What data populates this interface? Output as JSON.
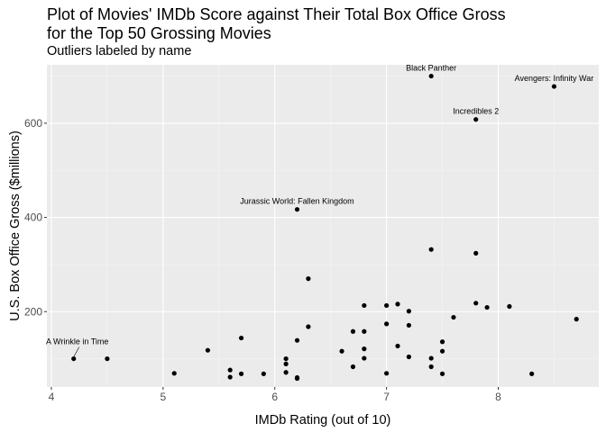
{
  "chart_data": {
    "type": "scatter",
    "title": "Plot of Movies' IMDb Score against Their Total Box Office Gross\nfor the Top 50 Grossing Movies",
    "subtitle": "Outliers labeled by name",
    "xlabel": "IMDb Rating (out of 10)",
    "ylabel": "U.S. Box Office Gross ($millions)",
    "xlim": [
      3.96,
      8.9
    ],
    "ylim": [
      40,
      724
    ],
    "xticks": [
      4,
      5,
      6,
      7,
      8
    ],
    "yticks": [
      200,
      400,
      600
    ],
    "grid": true,
    "points": [
      {
        "x": 4.2,
        "y": 100
      },
      {
        "x": 4.5,
        "y": 100
      },
      {
        "x": 5.1,
        "y": 69
      },
      {
        "x": 5.4,
        "y": 118
      },
      {
        "x": 5.6,
        "y": 76
      },
      {
        "x": 5.6,
        "y": 61
      },
      {
        "x": 5.7,
        "y": 144
      },
      {
        "x": 5.7,
        "y": 68
      },
      {
        "x": 5.9,
        "y": 68
      },
      {
        "x": 6.1,
        "y": 100
      },
      {
        "x": 6.1,
        "y": 89
      },
      {
        "x": 6.1,
        "y": 71
      },
      {
        "x": 6.2,
        "y": 417
      },
      {
        "x": 6.2,
        "y": 139
      },
      {
        "x": 6.2,
        "y": 60
      },
      {
        "x": 6.2,
        "y": 58
      },
      {
        "x": 6.3,
        "y": 270
      },
      {
        "x": 6.3,
        "y": 168
      },
      {
        "x": 6.6,
        "y": 116
      },
      {
        "x": 6.7,
        "y": 158
      },
      {
        "x": 6.7,
        "y": 83
      },
      {
        "x": 6.8,
        "y": 213
      },
      {
        "x": 6.8,
        "y": 158
      },
      {
        "x": 6.8,
        "y": 121
      },
      {
        "x": 6.8,
        "y": 101
      },
      {
        "x": 7.0,
        "y": 213
      },
      {
        "x": 7.0,
        "y": 174
      },
      {
        "x": 7.0,
        "y": 69
      },
      {
        "x": 7.1,
        "y": 216
      },
      {
        "x": 7.1,
        "y": 127
      },
      {
        "x": 7.2,
        "y": 201
      },
      {
        "x": 7.2,
        "y": 171
      },
      {
        "x": 7.2,
        "y": 104
      },
      {
        "x": 7.4,
        "y": 700
      },
      {
        "x": 7.4,
        "y": 332
      },
      {
        "x": 7.4,
        "y": 101
      },
      {
        "x": 7.4,
        "y": 83
      },
      {
        "x": 7.5,
        "y": 136
      },
      {
        "x": 7.5,
        "y": 116
      },
      {
        "x": 7.5,
        "y": 68
      },
      {
        "x": 7.6,
        "y": 188
      },
      {
        "x": 7.8,
        "y": 608
      },
      {
        "x": 7.8,
        "y": 324
      },
      {
        "x": 7.8,
        "y": 218
      },
      {
        "x": 7.9,
        "y": 209
      },
      {
        "x": 8.1,
        "y": 211
      },
      {
        "x": 8.3,
        "y": 68
      },
      {
        "x": 8.5,
        "y": 678
      },
      {
        "x": 8.7,
        "y": 184
      }
    ],
    "annotations": [
      {
        "label": "Black Panther",
        "x": 7.4,
        "y": 700
      },
      {
        "label": "Avengers: Infinity War",
        "x": 8.5,
        "y": 678
      },
      {
        "label": "Incredibles 2",
        "x": 7.8,
        "y": 608
      },
      {
        "label": "Jurassic World: Fallen Kingdom",
        "x": 6.2,
        "y": 417
      },
      {
        "label": "A Wrinkle in Time",
        "x": 4.2,
        "y": 100
      }
    ],
    "colors": {
      "panel": "#ebebeb",
      "grid_major": "#ffffff",
      "grid_minor": "#f5f5f5",
      "point": "#000000"
    }
  }
}
